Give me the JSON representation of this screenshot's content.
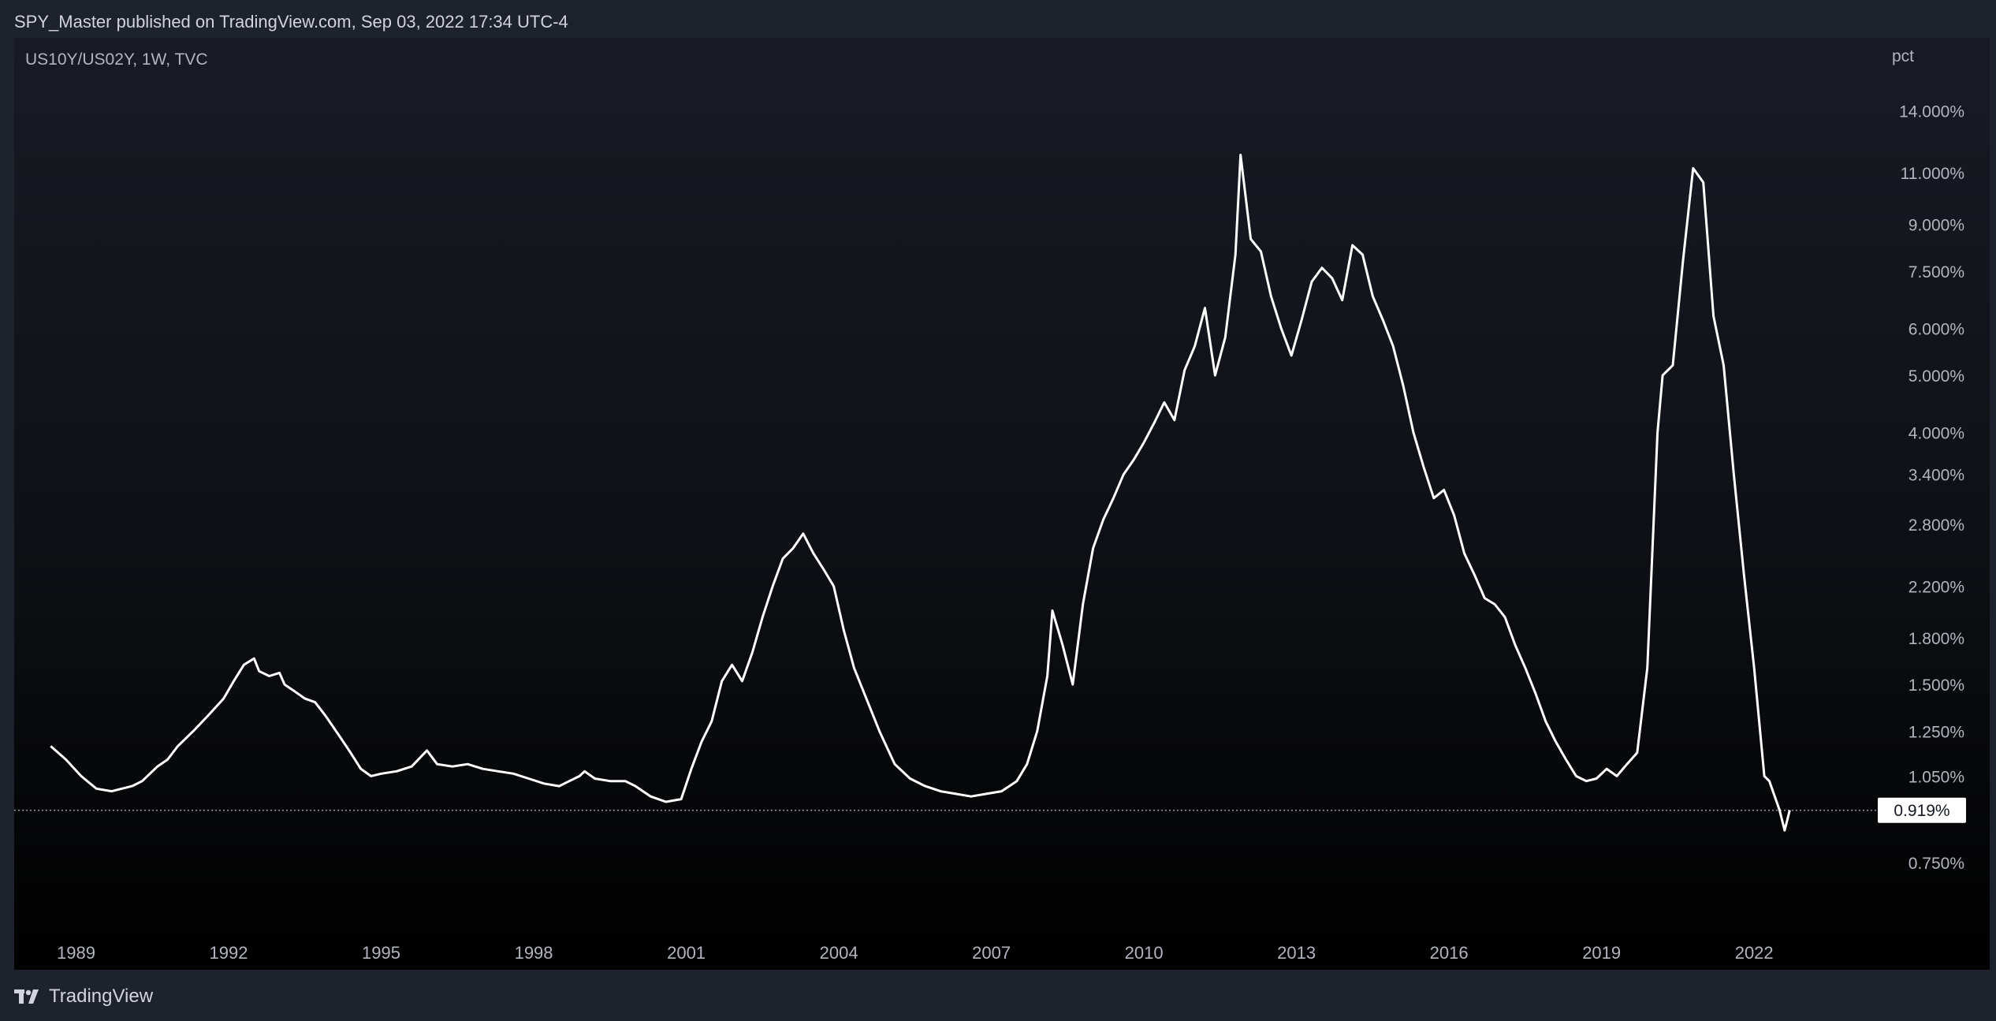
{
  "header": {
    "text": "SPY_Master published on TradingView.com, Sep 03, 2022 17:34 UTC-4"
  },
  "chart_info": {
    "symbol_line": "US10Y/US02Y, 1W, TVC",
    "axis_unit": "pct"
  },
  "footer": {
    "brand": "TradingView"
  },
  "colors": {
    "background": "#1e222d",
    "line": "#ffffff",
    "text": "#d1d4dc",
    "axis_text": "#b2b5be"
  },
  "chart_data": {
    "type": "line",
    "title": "US10Y/US02Y, 1W, TVC",
    "xlabel": "",
    "ylabel": "pct",
    "y_scale": "log",
    "grid": false,
    "x_range": [
      1988.0,
      2024.4
    ],
    "y_range": [
      0.62,
      17.5
    ],
    "x_ticks": [
      {
        "label": "1989",
        "value": 1989
      },
      {
        "label": "1992",
        "value": 1992
      },
      {
        "label": "1995",
        "value": 1995
      },
      {
        "label": "1998",
        "value": 1998
      },
      {
        "label": "2001",
        "value": 2001
      },
      {
        "label": "2004",
        "value": 2004
      },
      {
        "label": "2007",
        "value": 2007
      },
      {
        "label": "2010",
        "value": 2010
      },
      {
        "label": "2013",
        "value": 2013
      },
      {
        "label": "2016",
        "value": 2016
      },
      {
        "label": "2019",
        "value": 2019
      },
      {
        "label": "2022",
        "value": 2022
      }
    ],
    "y_ticks": [
      {
        "label": "14.000%",
        "value": 14.0
      },
      {
        "label": "11.000%",
        "value": 11.0
      },
      {
        "label": "9.000%",
        "value": 9.0
      },
      {
        "label": "7.500%",
        "value": 7.5
      },
      {
        "label": "6.000%",
        "value": 6.0
      },
      {
        "label": "5.000%",
        "value": 5.0
      },
      {
        "label": "4.000%",
        "value": 4.0
      },
      {
        "label": "3.400%",
        "value": 3.4
      },
      {
        "label": "2.800%",
        "value": 2.8
      },
      {
        "label": "2.200%",
        "value": 2.2
      },
      {
        "label": "1.800%",
        "value": 1.8
      },
      {
        "label": "1.500%",
        "value": 1.5
      },
      {
        "label": "1.250%",
        "value": 1.25
      },
      {
        "label": "1.050%",
        "value": 1.05
      },
      {
        "label": "0.750%",
        "value": 0.75
      }
    ],
    "last_value": {
      "label": "0.919%",
      "value": 0.919
    },
    "series": [
      {
        "x": [
          1988.5,
          1988.8,
          1989.1,
          1989.4,
          1989.7,
          1989.9,
          1990.1,
          1990.3,
          1990.6,
          1990.8,
          1991.0,
          1991.3,
          1991.6,
          1991.9,
          1992.1,
          1992.3,
          1992.5,
          1992.6,
          1992.8,
          1993.0,
          1993.1,
          1993.3,
          1993.5,
          1993.7,
          1993.9,
          1994.2,
          1994.4,
          1994.6,
          1994.8,
          1995.0,
          1995.3,
          1995.6,
          1995.9,
          1996.1,
          1996.4,
          1996.7,
          1997.0,
          1997.3,
          1997.6,
          1997.9,
          1998.2,
          1998.5,
          1998.7,
          1998.9,
          1999.0,
          1999.2,
          1999.5,
          1999.8,
          2000.0,
          2000.3,
          2000.6,
          2000.9,
          2001.1,
          2001.3,
          2001.5,
          2001.7,
          2001.9,
          2002.1,
          2002.3,
          2002.5,
          2002.7,
          2002.9,
          2003.1,
          2003.3,
          2003.5,
          2003.7,
          2003.9,
          2004.1,
          2004.3,
          2004.5,
          2004.8,
          2005.1,
          2005.4,
          2005.7,
          2006.0,
          2006.3,
          2006.6,
          2006.9,
          2007.2,
          2007.5,
          2007.7,
          2007.9,
          2008.1,
          2008.2,
          2008.4,
          2008.6,
          2008.8,
          2009.0,
          2009.2,
          2009.4,
          2009.6,
          2009.8,
          2010.0,
          2010.2,
          2010.4,
          2010.6,
          2010.8,
          2011.0,
          2011.2,
          2011.4,
          2011.6,
          2011.8,
          2011.9,
          2012.1,
          2012.3,
          2012.5,
          2012.7,
          2012.9,
          2013.1,
          2013.3,
          2013.5,
          2013.7,
          2013.9,
          2014.1,
          2014.3,
          2014.5,
          2014.7,
          2014.9,
          2015.1,
          2015.3,
          2015.5,
          2015.7,
          2015.9,
          2016.1,
          2016.3,
          2016.5,
          2016.7,
          2016.9,
          2017.1,
          2017.3,
          2017.5,
          2017.7,
          2017.9,
          2018.1,
          2018.3,
          2018.5,
          2018.7,
          2018.9,
          2019.1,
          2019.3,
          2019.5,
          2019.7,
          2019.9,
          2020.1,
          2020.2,
          2020.4,
          2020.6,
          2020.8,
          2021.0,
          2021.2,
          2021.4,
          2021.6,
          2021.8,
          2022.0,
          2022.2,
          2022.3,
          2022.5,
          2022.6,
          2022.7
        ],
        "y": [
          1.18,
          1.12,
          1.05,
          1.0,
          0.99,
          1.0,
          1.01,
          1.03,
          1.09,
          1.12,
          1.18,
          1.25,
          1.33,
          1.42,
          1.52,
          1.62,
          1.66,
          1.58,
          1.55,
          1.57,
          1.5,
          1.46,
          1.42,
          1.4,
          1.33,
          1.22,
          1.15,
          1.08,
          1.05,
          1.06,
          1.07,
          1.09,
          1.16,
          1.1,
          1.09,
          1.1,
          1.08,
          1.07,
          1.06,
          1.04,
          1.02,
          1.01,
          1.03,
          1.05,
          1.07,
          1.04,
          1.03,
          1.03,
          1.01,
          0.97,
          0.95,
          0.96,
          1.08,
          1.2,
          1.3,
          1.52,
          1.62,
          1.52,
          1.7,
          1.95,
          2.2,
          2.45,
          2.55,
          2.7,
          2.5,
          2.35,
          2.2,
          1.85,
          1.6,
          1.45,
          1.25,
          1.1,
          1.04,
          1.01,
          0.99,
          0.98,
          0.97,
          0.98,
          0.99,
          1.03,
          1.1,
          1.25,
          1.55,
          2.0,
          1.75,
          1.5,
          2.05,
          2.55,
          2.85,
          3.1,
          3.4,
          3.6,
          3.85,
          4.15,
          4.5,
          4.2,
          5.1,
          5.6,
          6.5,
          5.0,
          5.8,
          8.0,
          11.8,
          8.5,
          8.1,
          6.8,
          6.0,
          5.4,
          6.2,
          7.2,
          7.6,
          7.3,
          6.7,
          8.3,
          8.0,
          6.8,
          6.2,
          5.6,
          4.8,
          4.0,
          3.5,
          3.1,
          3.2,
          2.9,
          2.5,
          2.3,
          2.1,
          2.05,
          1.95,
          1.75,
          1.6,
          1.45,
          1.3,
          1.2,
          1.12,
          1.05,
          1.03,
          1.04,
          1.08,
          1.05,
          1.1,
          1.15,
          1.6,
          4.0,
          5.0,
          5.2,
          7.8,
          11.2,
          10.6,
          6.3,
          5.2,
          3.4,
          2.3,
          1.6,
          1.05,
          1.03,
          0.92,
          0.85,
          0.919
        ]
      }
    ]
  }
}
